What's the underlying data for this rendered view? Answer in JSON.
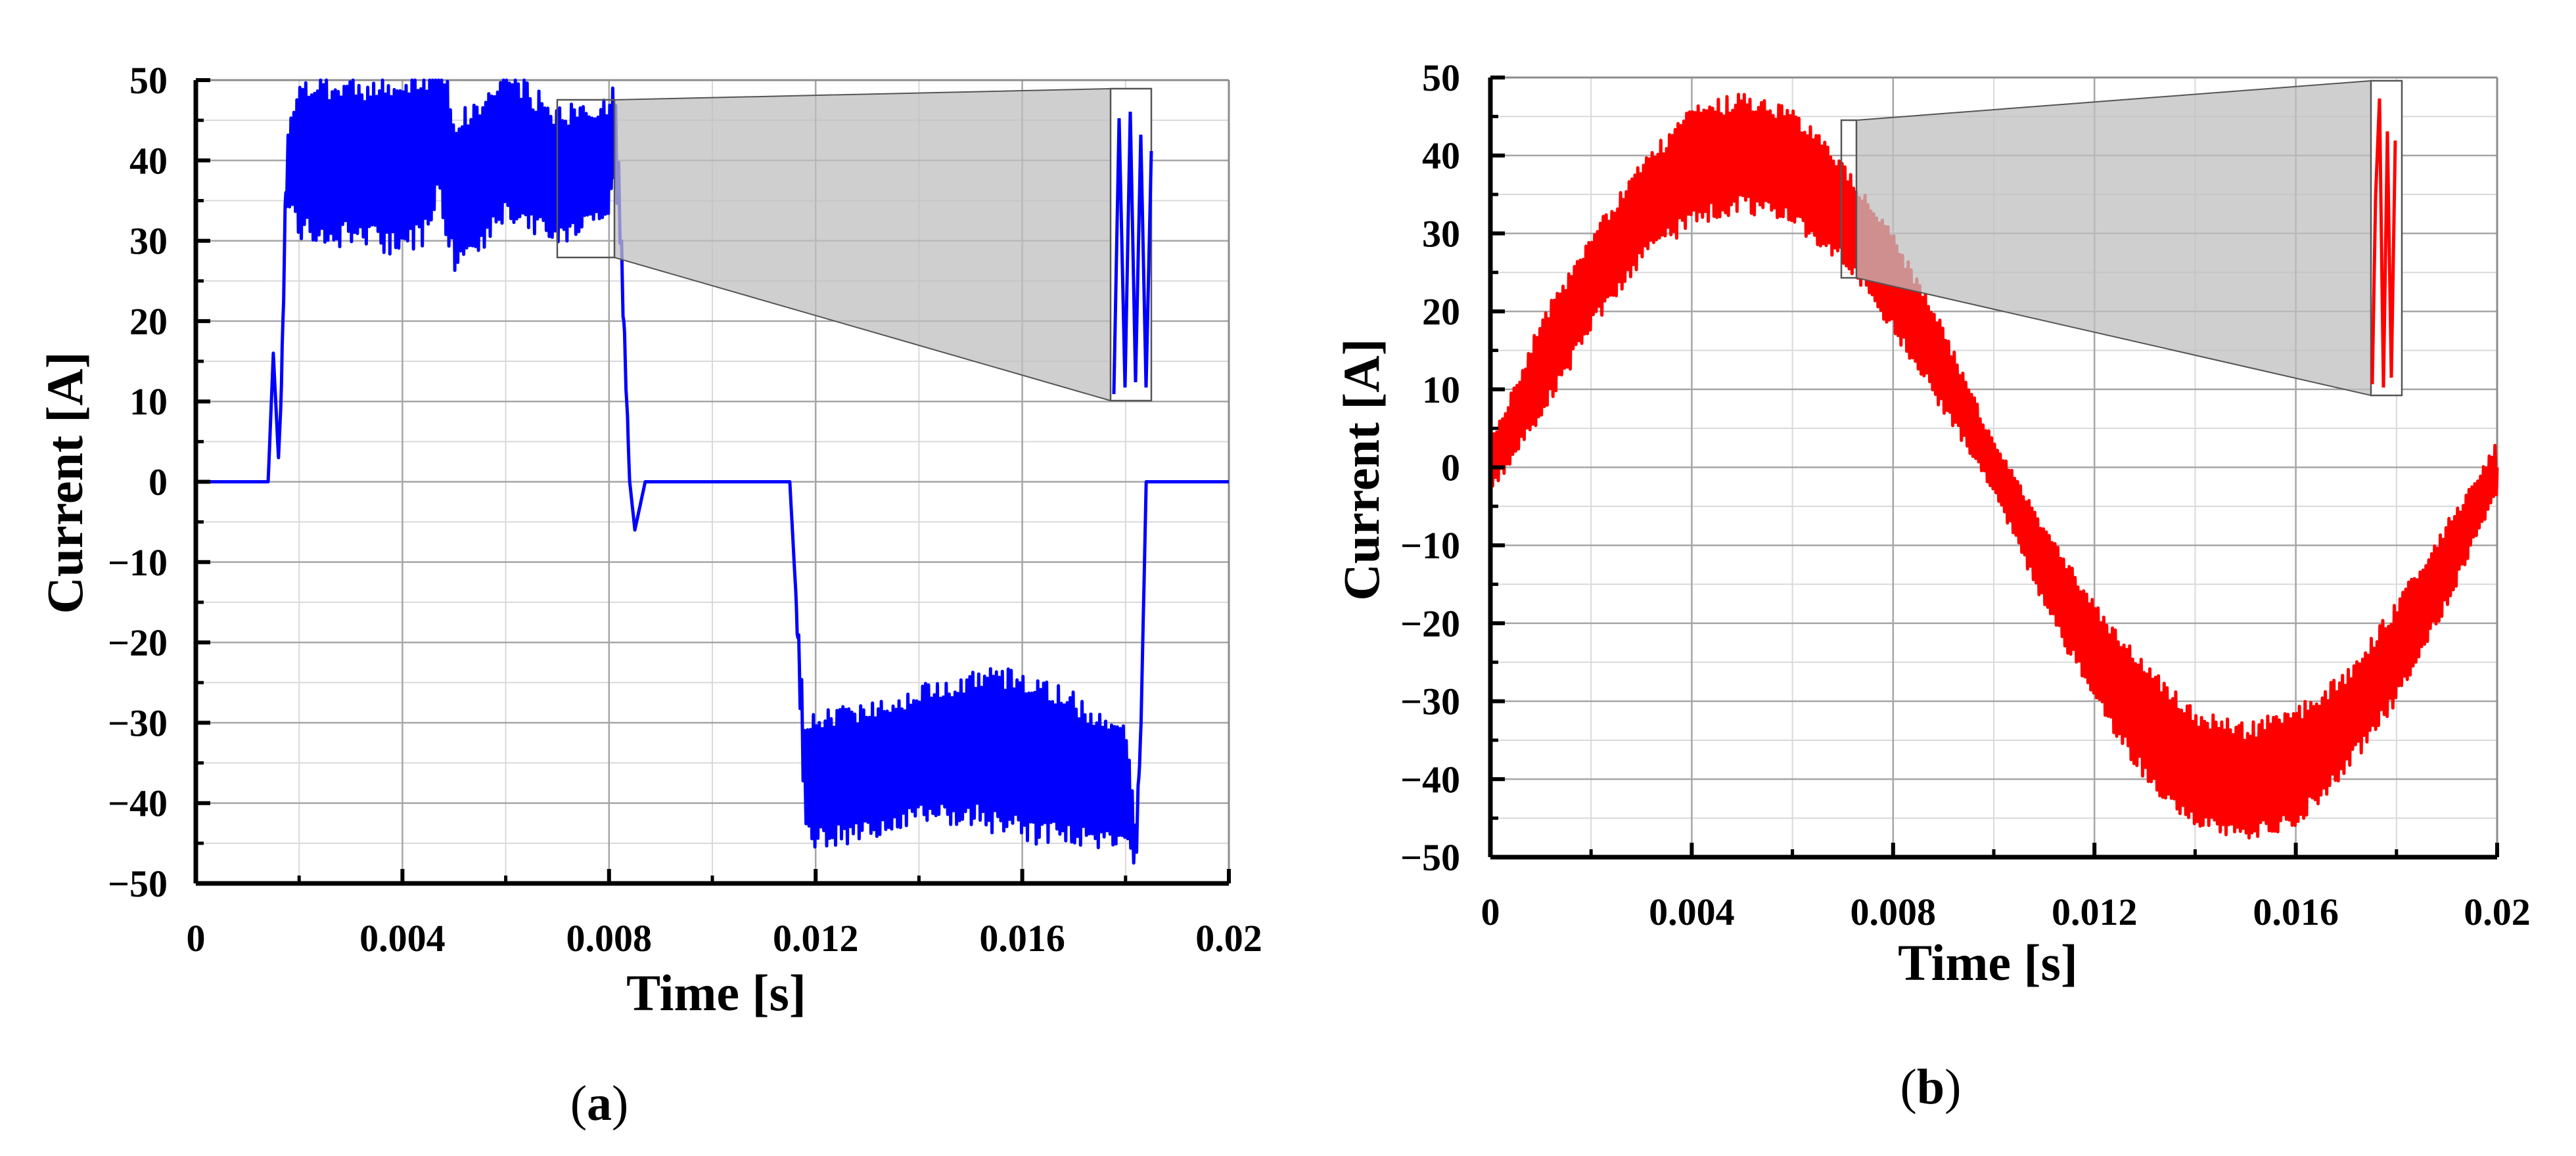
{
  "chart_data": [
    {
      "type": "line",
      "panel_label": "(a)",
      "panel_letter": "a",
      "xlabel": "Time [s]",
      "ylabel": "Current [A]",
      "xlim": [
        0,
        0.02
      ],
      "ylim": [
        -50,
        50
      ],
      "x_ticks": [
        "0",
        "0.004",
        "0.008",
        "0.012",
        "0.016",
        "0.02"
      ],
      "y_ticks": [
        "50",
        "40",
        "30",
        "20",
        "10",
        "0",
        "−10",
        "−20",
        "−30",
        "−40",
        "−50"
      ],
      "grid": true,
      "inset": true,
      "series": [
        {
          "color": "#0000ff",
          "x": [
            0,
            0.0014,
            0.0015,
            0.0016,
            0.00165,
            0.00175,
            0.00185,
            0.002,
            0.003,
            0.004,
            0.0046,
            0.0047,
            0.005,
            0.0055,
            0.006,
            0.007,
            0.008,
            0.0081,
            0.0082,
            0.0084,
            0.0085,
            0.0087,
            0.01,
            0.0115,
            0.0116,
            0.0118,
            0.012,
            0.013,
            0.014,
            0.015,
            0.016,
            0.017,
            0.0175,
            0.018,
            0.0182,
            0.0183,
            0.0184,
            0.0186,
            0.02
          ],
          "y": [
            0,
            0,
            16,
            3,
            10,
            38,
            40,
            40,
            40,
            39,
            41,
            46,
            36,
            38,
            42,
            38,
            40,
            44,
            35,
            0,
            -6,
            0,
            0,
            0,
            -12,
            -38,
            -37,
            -36,
            -34,
            -33,
            -34,
            -36,
            -37,
            -37,
            -46,
            -30,
            0,
            0,
            0
          ],
          "ripple": [
            0,
            0,
            0,
            0,
            0,
            4,
            7,
            9,
            10,
            10,
            10,
            10,
            9,
            9,
            9,
            8,
            7,
            6,
            3,
            0,
            0,
            0,
            0,
            0,
            0,
            6,
            8,
            8,
            8,
            9,
            10,
            9,
            8,
            7,
            3,
            0,
            0,
            0,
            0
          ]
        }
      ]
    },
    {
      "type": "line",
      "panel_label": "(b)",
      "panel_letter": "b",
      "xlabel": "Time [s]",
      "ylabel": "Current [A]",
      "xlim": [
        0,
        0.02
      ],
      "ylim": [
        -50,
        50
      ],
      "x_ticks": [
        "0",
        "0.004",
        "0.008",
        "0.012",
        "0.016",
        "0.02"
      ],
      "y_ticks": [
        "50",
        "40",
        "30",
        "20",
        "10",
        "0",
        "−10",
        "−20",
        "−30",
        "−40",
        "−50"
      ],
      "grid": true,
      "inset": true,
      "series": [
        {
          "color": "#ff0000",
          "x": [
            0,
            0.001,
            0.002,
            0.003,
            0.004,
            0.005,
            0.006,
            0.007,
            0.008,
            0.009,
            0.01,
            0.011,
            0.012,
            0.013,
            0.014,
            0.015,
            0.016,
            0.017,
            0.018,
            0.019,
            0.02
          ],
          "y": [
            0,
            12.5,
            23.8,
            32.7,
            38.5,
            40.5,
            38.5,
            32.7,
            23.8,
            12.5,
            0,
            -12.5,
            -23.8,
            -32.7,
            -38.5,
            -40.5,
            -38.5,
            -32.7,
            -23.8,
            -12.5,
            0
          ],
          "ripple": [
            3,
            6,
            6,
            6,
            7,
            7,
            7,
            6,
            6,
            5,
            3,
            5,
            6,
            7,
            7,
            7,
            7,
            6,
            6,
            5,
            3
          ]
        }
      ]
    }
  ]
}
